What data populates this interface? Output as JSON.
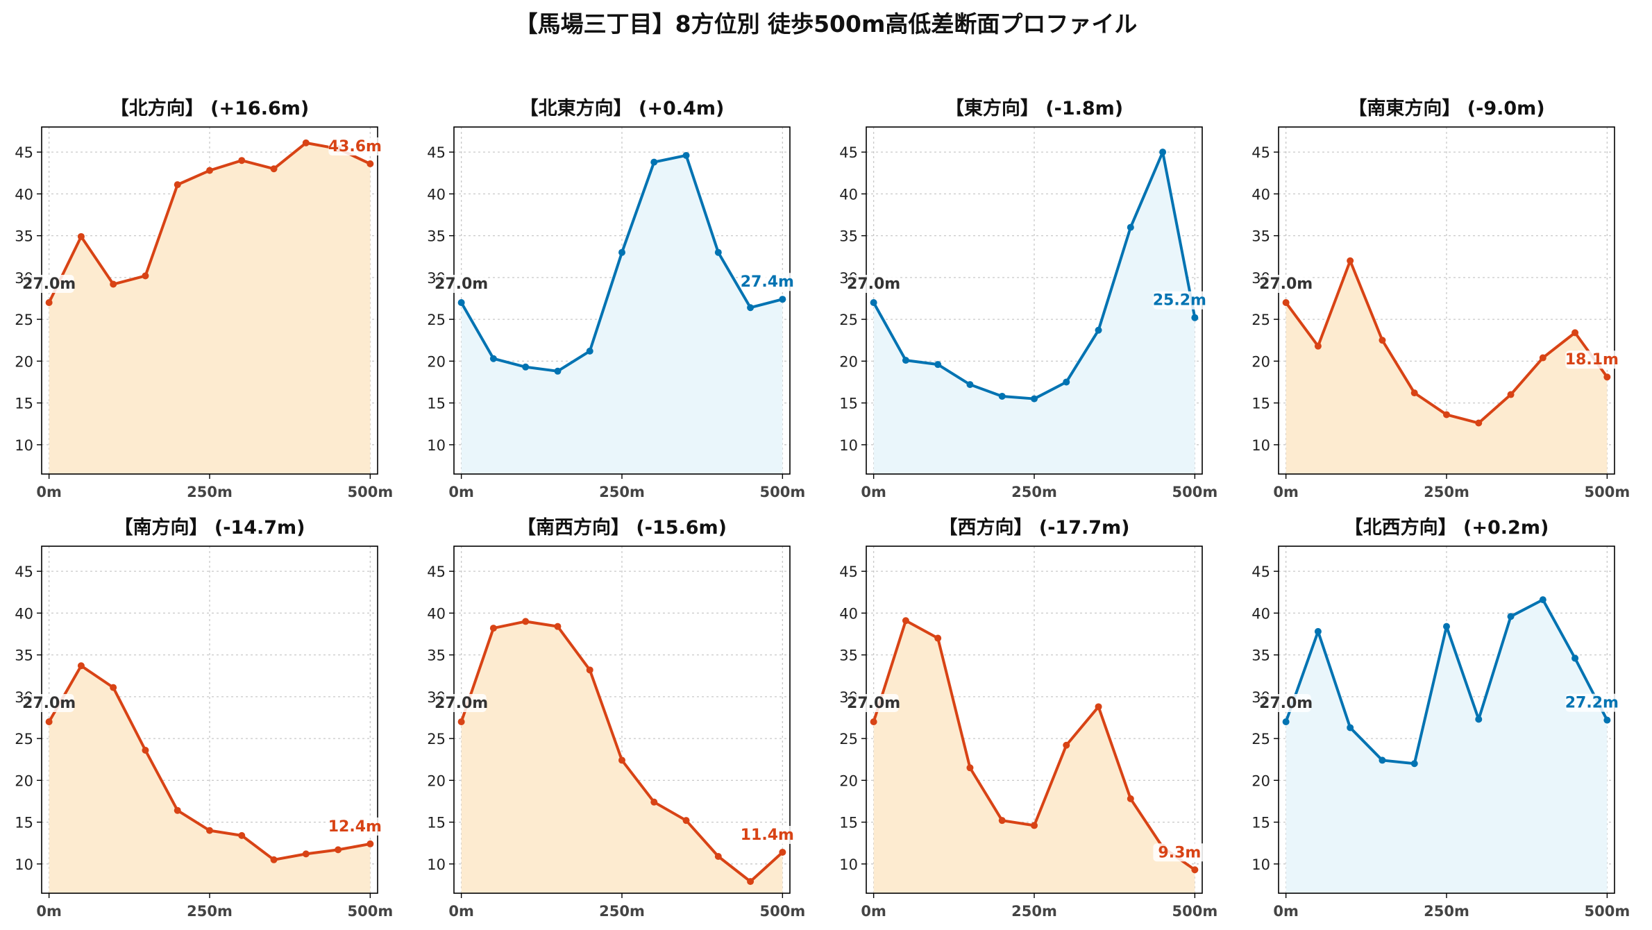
{
  "title": "【馬場三丁目】8方位別 徒歩500m高低差断面プロファイル",
  "axes": {
    "xlim": [
      0,
      500
    ],
    "ylim": [
      6.5,
      48
    ],
    "x_ticks": [
      0,
      250,
      500
    ],
    "x_tick_labels": [
      "0m",
      "250m",
      "500m"
    ],
    "y_ticks": [
      10,
      15,
      20,
      25,
      30,
      35,
      40,
      45
    ],
    "y_tick_labels": [
      "10",
      "15",
      "20",
      "25",
      "30",
      "35",
      "40",
      "45"
    ],
    "grid": true
  },
  "colors": {
    "up_line": "#0173b2",
    "up_fill": "#eaf6fb",
    "down_line": "#d84315",
    "down_fill": "#fdebd0",
    "start_label": "#333333"
  },
  "chart_data": [
    {
      "type": "area",
      "title": "【北方向】 (+16.6m)",
      "trend": "down_color",
      "x": [
        0,
        50,
        100,
        150,
        200,
        250,
        300,
        350,
        400,
        450,
        500
      ],
      "y": [
        27.0,
        34.9,
        29.2,
        30.2,
        41.1,
        42.8,
        44.0,
        43.0,
        46.1,
        45.4,
        43.6
      ],
      "start_label": "27.0m",
      "end_label": "43.6m"
    },
    {
      "type": "area",
      "title": "【北東方向】 (+0.4m)",
      "trend": "up_color",
      "x": [
        0,
        50,
        100,
        150,
        200,
        250,
        300,
        350,
        400,
        450,
        500
      ],
      "y": [
        27.0,
        20.3,
        19.3,
        18.8,
        21.2,
        33.0,
        43.8,
        44.6,
        33.0,
        26.4,
        27.4
      ],
      "start_label": "27.0m",
      "end_label": "27.4m"
    },
    {
      "type": "area",
      "title": "【東方向】 (-1.8m)",
      "trend": "up_color",
      "x": [
        0,
        50,
        100,
        150,
        200,
        250,
        300,
        350,
        400,
        450,
        500
      ],
      "y": [
        27.0,
        20.1,
        19.6,
        17.2,
        15.8,
        15.5,
        17.5,
        23.7,
        36.0,
        45.0,
        25.2
      ],
      "start_label": "27.0m",
      "end_label": "25.2m"
    },
    {
      "type": "area",
      "title": "【南東方向】 (-9.0m)",
      "trend": "down_color",
      "x": [
        0,
        50,
        100,
        150,
        200,
        250,
        300,
        350,
        400,
        450,
        500
      ],
      "y": [
        27.0,
        21.8,
        32.0,
        22.5,
        16.2,
        13.6,
        12.6,
        16.0,
        20.4,
        23.4,
        18.1
      ],
      "start_label": "27.0m",
      "end_label": "18.1m"
    },
    {
      "type": "area",
      "title": "【南方向】 (-14.7m)",
      "trend": "down_color",
      "x": [
        0,
        50,
        100,
        150,
        200,
        250,
        300,
        350,
        400,
        450,
        500
      ],
      "y": [
        27.0,
        33.7,
        31.1,
        23.6,
        16.4,
        14.0,
        13.4,
        10.5,
        11.2,
        11.7,
        12.4
      ],
      "start_label": "27.0m",
      "end_label": "12.4m"
    },
    {
      "type": "area",
      "title": "【南西方向】 (-15.6m)",
      "trend": "down_color",
      "x": [
        0,
        50,
        100,
        150,
        200,
        250,
        300,
        350,
        400,
        450,
        500
      ],
      "y": [
        27.0,
        38.2,
        39.0,
        38.4,
        33.2,
        22.4,
        17.4,
        15.2,
        10.9,
        7.9,
        11.4
      ],
      "start_label": "27.0m",
      "end_label": "11.4m"
    },
    {
      "type": "area",
      "title": "【西方向】 (-17.7m)",
      "trend": "down_color",
      "x": [
        0,
        50,
        100,
        150,
        200,
        250,
        300,
        350,
        400,
        450,
        500
      ],
      "y": [
        27.0,
        39.1,
        37.0,
        21.5,
        15.2,
        14.6,
        24.2,
        28.8,
        17.8,
        12.0,
        9.3
      ],
      "start_label": "27.0m",
      "end_label": "9.3m"
    },
    {
      "type": "area",
      "title": "【北西方向】 (+0.2m)",
      "trend": "up_color",
      "x": [
        0,
        50,
        100,
        150,
        200,
        250,
        300,
        350,
        400,
        450,
        500
      ],
      "y": [
        27.0,
        37.8,
        26.3,
        22.4,
        22.0,
        38.4,
        27.3,
        39.6,
        41.6,
        34.6,
        27.2
      ],
      "start_label": "27.0m",
      "end_label": "27.2m"
    }
  ]
}
